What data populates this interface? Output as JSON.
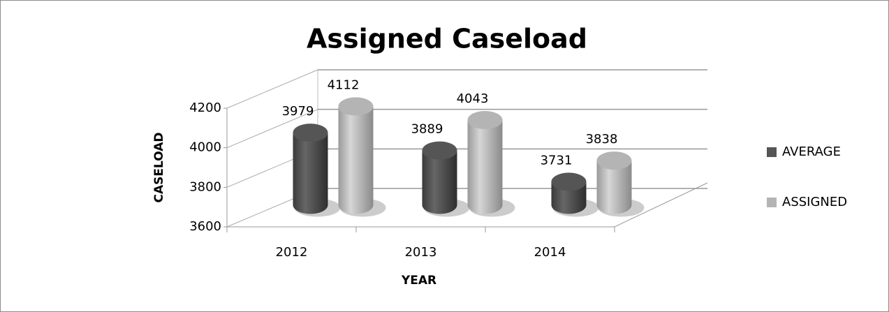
{
  "chart_data": {
    "type": "bar3d",
    "title": "Assigned Caseload",
    "categories": [
      "2012",
      "2013",
      "2014"
    ],
    "series": [
      {
        "name": "AVERAGE",
        "color": "#555555",
        "values": [
          3979,
          3889,
          3731
        ]
      },
      {
        "name": "ASSIGNED",
        "color": "#b4b4b4",
        "values": [
          4112,
          4043,
          3838
        ]
      }
    ],
    "x_label": "YEAR",
    "y_label": "CASELOAD",
    "ylim": [
      3600,
      4200
    ],
    "yticks": [
      3600,
      3800,
      4000,
      4200
    ],
    "grid": true,
    "legend": "right"
  }
}
